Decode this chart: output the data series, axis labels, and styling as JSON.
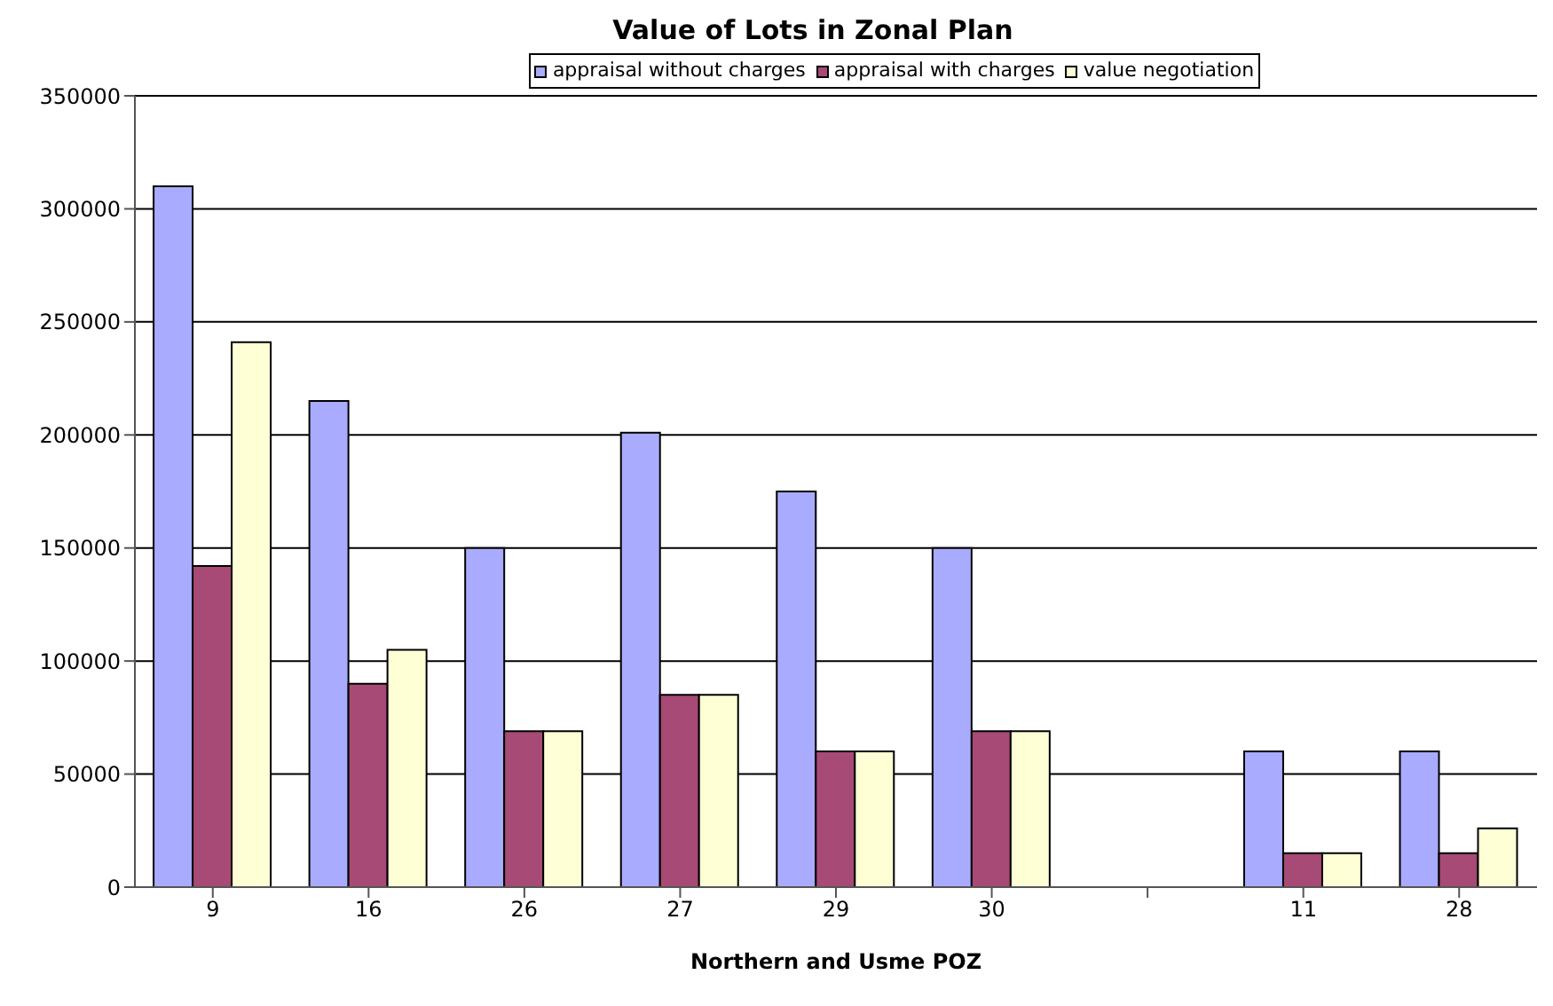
{
  "chart_data": {
    "type": "bar",
    "title": "Value of Lots in Zonal Plan",
    "xlabel": "Northern and Usme POZ",
    "categories": [
      "9",
      "16",
      "26",
      "27",
      "29",
      "30",
      null,
      "11",
      "28"
    ],
    "series": [
      {
        "name": "appraisal without charges",
        "color": "#a9abfe",
        "values": [
          310000,
          215000,
          150000,
          201000,
          175000,
          150000,
          null,
          60000,
          60000
        ]
      },
      {
        "name": "appraisal with charges",
        "color": "#a84a76",
        "values": [
          142000,
          90000,
          69000,
          85000,
          60000,
          69000,
          null,
          15000,
          15000
        ]
      },
      {
        "name": "value negotiation",
        "color": "#ffffd6",
        "values": [
          241000,
          105000,
          69000,
          85000,
          60000,
          69000,
          null,
          15000,
          26000
        ]
      }
    ],
    "ylim": [
      0,
      350000
    ],
    "yticks": [
      0,
      50000,
      100000,
      150000,
      200000,
      250000,
      300000,
      350000
    ],
    "grid": "y",
    "legend": "top"
  }
}
